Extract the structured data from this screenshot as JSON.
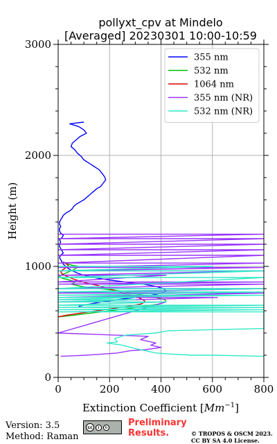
{
  "footer": {
    "version": "Version: 3.5",
    "method": "Method: Raman",
    "preliminary_line1": "Preliminary",
    "preliminary_line2": "Results.",
    "copyright_line1": "© TROPOS & OSCM 2023.",
    "copyright_line2": "CC BY SA 4.0 License.",
    "badge_icon": "cc-by-sa-license-badge"
  },
  "chart_data": {
    "type": "line",
    "title": [
      "pollyxt_cpv at Mindelo",
      "[Averaged] 20230301 10:00-10:59"
    ],
    "xlabel_text": "Extinction Coefficient [",
    "xlabel_unit": "Mm",
    "xlabel_exp": "−1",
    "xlabel_close": "]",
    "ylabel": "Height (m)",
    "xlim": [
      0,
      800
    ],
    "ylim": [
      0,
      3000
    ],
    "xticks": [
      0,
      200,
      400,
      600,
      800
    ],
    "yticks": [
      0,
      1000,
      2000,
      3000
    ],
    "grid": true,
    "legend_position": "top-right",
    "series": [
      {
        "name": "355 nm",
        "color": "#0000ff",
        "x": [
          100,
          45,
          80,
          100,
          110,
          85,
          70,
          55,
          50,
          65,
          75,
          90,
          100,
          120,
          140,
          160,
          170,
          180,
          185,
          175,
          165,
          150,
          140,
          130,
          120,
          110,
          100,
          85,
          70,
          60,
          55,
          45,
          30,
          20,
          15,
          10,
          5,
          5,
          10,
          5,
          5,
          10,
          20,
          15,
          5,
          10,
          5,
          5,
          10,
          15,
          20,
          10,
          5,
          10,
          15,
          20,
          30,
          40,
          55,
          75,
          100,
          140,
          190,
          260,
          330,
          380,
          410,
          420,
          405,
          360,
          300,
          230,
          170,
          120,
          80
        ],
        "y": [
          2300,
          2285,
          2260,
          2230,
          2200,
          2170,
          2140,
          2110,
          2080,
          2050,
          2020,
          1990,
          1960,
          1930,
          1900,
          1870,
          1840,
          1810,
          1780,
          1750,
          1720,
          1700,
          1680,
          1660,
          1640,
          1620,
          1600,
          1580,
          1560,
          1540,
          1520,
          1500,
          1480,
          1460,
          1440,
          1420,
          1400,
          1380,
          1360,
          1340,
          1320,
          1300,
          1280,
          1260,
          1240,
          1220,
          1200,
          1180,
          1160,
          1140,
          1120,
          1100,
          1080,
          1060,
          1040,
          1020,
          1000,
          980,
          960,
          940,
          920,
          900,
          880,
          860,
          840,
          820,
          800,
          780,
          760,
          740,
          720,
          700,
          680,
          660,
          640
        ]
      },
      {
        "name": "532 nm",
        "color": "#00bb00",
        "x": [
          20,
          40,
          55,
          80,
          70,
          60,
          50,
          40,
          30,
          20,
          10,
          5,
          10,
          20,
          40,
          55,
          65,
          60,
          50,
          70,
          90,
          120,
          160,
          200,
          240,
          280,
          330,
          380,
          415,
          420,
          390,
          330,
          270,
          200,
          130,
          60,
          0
        ],
        "y": [
          1040,
          1020,
          1010,
          1000,
          985,
          970,
          960,
          950,
          940,
          930,
          920,
          910,
          900,
          890,
          880,
          870,
          860,
          850,
          840,
          830,
          820,
          810,
          800,
          790,
          780,
          760,
          740,
          720,
          700,
          680,
          660,
          640,
          620,
          600,
          580,
          560,
          545
        ]
      },
      {
        "name": "1064 nm",
        "color": "#dd0000",
        "x": [
          20,
          30,
          40,
          35,
          25,
          15,
          10,
          15,
          25,
          40,
          55,
          80,
          110,
          150,
          180,
          210,
          250,
          300,
          330,
          340,
          320,
          270,
          210,
          150,
          90,
          30,
          0
        ],
        "y": [
          1040,
          1025,
          1010,
          995,
          980,
          965,
          950,
          935,
          920,
          905,
          890,
          870,
          850,
          830,
          810,
          790,
          760,
          730,
          700,
          680,
          660,
          640,
          620,
          600,
          580,
          560,
          545
        ]
      },
      {
        "name": "355 nm (NR)",
        "color": "#9933ff",
        "x": [
          0,
          800,
          0,
          800,
          0,
          800,
          0,
          800,
          0,
          800,
          0,
          800,
          0,
          800,
          0,
          800,
          0,
          420,
          0,
          800,
          0,
          800,
          0,
          800,
          0,
          800,
          0,
          620,
          0,
          420,
          0,
          350,
          320,
          380,
          360,
          400,
          340,
          280,
          230,
          170,
          110,
          60,
          10
        ],
        "y": [
          1290,
          1290,
          1250,
          1250,
          1200,
          1200,
          1150,
          1150,
          1100,
          1100,
          1030,
          1030,
          990,
          990,
          960,
          960,
          920,
          920,
          860,
          860,
          840,
          840,
          800,
          800,
          760,
          760,
          720,
          720,
          680,
          680,
          400,
          370,
          340,
          310,
          290,
          270,
          250,
          240,
          220,
          210,
          200,
          195,
          190
        ]
      },
      {
        "name": "532 nm (NR)",
        "color": "#33e8c8",
        "x": [
          0,
          600,
          0,
          800,
          0,
          800,
          0,
          800,
          0,
          800,
          0,
          800,
          0,
          300,
          0,
          300,
          0,
          420,
          0,
          800,
          0,
          800,
          0,
          800,
          0,
          800,
          800,
          600,
          430,
          380,
          320,
          260,
          220,
          230,
          190,
          250,
          300,
          340,
          380,
          440,
          520,
          600,
          700,
          800
        ],
        "y": [
          1000,
          1000,
          960,
          960,
          900,
          900,
          800,
          800,
          770,
          770,
          740,
          740,
          720,
          720,
          700,
          700,
          680,
          680,
          650,
          650,
          630,
          630,
          610,
          610,
          590,
          590,
          440,
          430,
          420,
          400,
          390,
          380,
          350,
          320,
          310,
          290,
          260,
          240,
          220,
          210,
          200,
          200,
          195,
          190
        ]
      }
    ]
  }
}
